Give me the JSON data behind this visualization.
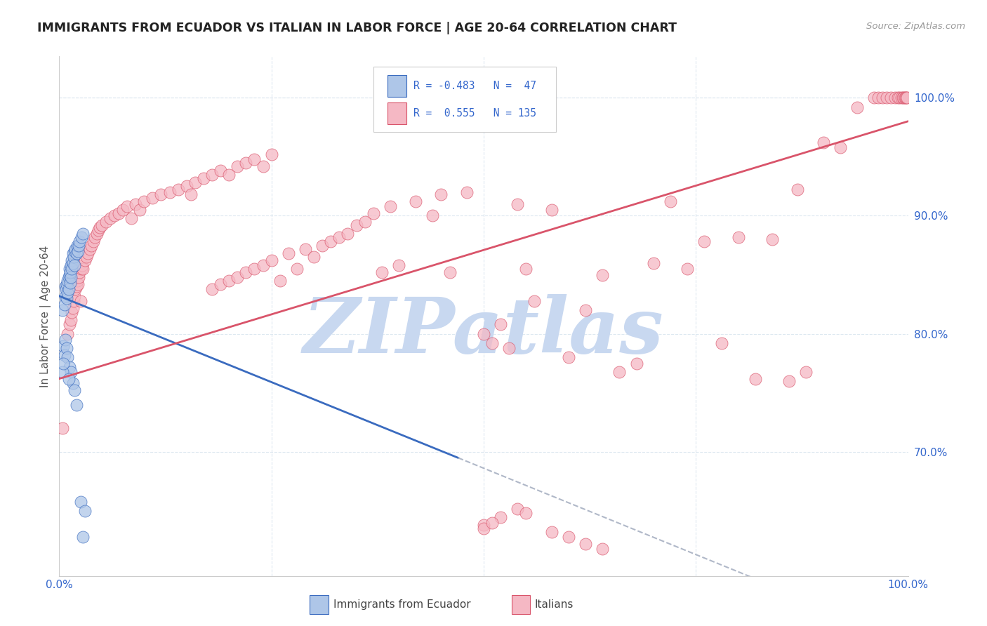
{
  "title": "IMMIGRANTS FROM ECUADOR VS ITALIAN IN LABOR FORCE | AGE 20-64 CORRELATION CHART",
  "source": "Source: ZipAtlas.com",
  "ylabel": "In Labor Force | Age 20-64",
  "xlim": [
    0.0,
    1.0
  ],
  "ylim": [
    0.595,
    1.035
  ],
  "yticks": [
    0.7,
    0.8,
    0.9,
    1.0
  ],
  "ytick_labels": [
    "70.0%",
    "80.0%",
    "90.0%",
    "100.0%"
  ],
  "watermark": "ZIPatlas",
  "blue_color": "#aec6e8",
  "pink_color": "#f5b8c4",
  "line_blue": "#3a6bbf",
  "line_pink": "#d9546a",
  "line_dashed_color": "#b0b8c8",
  "title_color": "#222222",
  "axis_label_color": "#555555",
  "tick_color": "#3366cc",
  "watermark_color": "#c8d8f0",
  "background_color": "#ffffff",
  "grid_color": "#dde8f0",
  "blue_scatter": [
    [
      0.004,
      0.82
    ],
    [
      0.006,
      0.825
    ],
    [
      0.007,
      0.832
    ],
    [
      0.007,
      0.84
    ],
    [
      0.008,
      0.838
    ],
    [
      0.009,
      0.842
    ],
    [
      0.009,
      0.83
    ],
    [
      0.01,
      0.845
    ],
    [
      0.01,
      0.835
    ],
    [
      0.011,
      0.838
    ],
    [
      0.011,
      0.848
    ],
    [
      0.012,
      0.85
    ],
    [
      0.012,
      0.855
    ],
    [
      0.013,
      0.843
    ],
    [
      0.013,
      0.852
    ],
    [
      0.014,
      0.848
    ],
    [
      0.014,
      0.858
    ],
    [
      0.015,
      0.862
    ],
    [
      0.015,
      0.855
    ],
    [
      0.016,
      0.86
    ],
    [
      0.016,
      0.868
    ],
    [
      0.017,
      0.865
    ],
    [
      0.018,
      0.87
    ],
    [
      0.018,
      0.858
    ],
    [
      0.019,
      0.872
    ],
    [
      0.02,
      0.868
    ],
    [
      0.021,
      0.875
    ],
    [
      0.022,
      0.87
    ],
    [
      0.023,
      0.875
    ],
    [
      0.024,
      0.878
    ],
    [
      0.026,
      0.882
    ],
    [
      0.028,
      0.885
    ],
    [
      0.005,
      0.79
    ],
    [
      0.006,
      0.782
    ],
    [
      0.007,
      0.795
    ],
    [
      0.009,
      0.788
    ],
    [
      0.01,
      0.78
    ],
    [
      0.012,
      0.772
    ],
    [
      0.014,
      0.768
    ],
    [
      0.016,
      0.758
    ],
    [
      0.018,
      0.752
    ],
    [
      0.004,
      0.768
    ],
    [
      0.005,
      0.775
    ],
    [
      0.011,
      0.762
    ],
    [
      0.02,
      0.74
    ],
    [
      0.025,
      0.658
    ],
    [
      0.03,
      0.65
    ],
    [
      0.028,
      0.628
    ]
  ],
  "pink_scatter": [
    [
      0.004,
      0.72
    ],
    [
      0.01,
      0.8
    ],
    [
      0.012,
      0.808
    ],
    [
      0.014,
      0.812
    ],
    [
      0.015,
      0.818
    ],
    [
      0.016,
      0.822
    ],
    [
      0.017,
      0.828
    ],
    [
      0.018,
      0.832
    ],
    [
      0.019,
      0.838
    ],
    [
      0.02,
      0.84
    ],
    [
      0.021,
      0.845
    ],
    [
      0.022,
      0.842
    ],
    [
      0.023,
      0.848
    ],
    [
      0.024,
      0.852
    ],
    [
      0.025,
      0.828
    ],
    [
      0.026,
      0.855
    ],
    [
      0.027,
      0.858
    ],
    [
      0.028,
      0.855
    ],
    [
      0.03,
      0.862
    ],
    [
      0.032,
      0.865
    ],
    [
      0.034,
      0.868
    ],
    [
      0.036,
      0.872
    ],
    [
      0.038,
      0.875
    ],
    [
      0.04,
      0.878
    ],
    [
      0.042,
      0.882
    ],
    [
      0.044,
      0.885
    ],
    [
      0.046,
      0.888
    ],
    [
      0.048,
      0.89
    ],
    [
      0.05,
      0.892
    ],
    [
      0.055,
      0.895
    ],
    [
      0.06,
      0.898
    ],
    [
      0.065,
      0.9
    ],
    [
      0.07,
      0.902
    ],
    [
      0.075,
      0.905
    ],
    [
      0.08,
      0.908
    ],
    [
      0.085,
      0.898
    ],
    [
      0.09,
      0.91
    ],
    [
      0.095,
      0.905
    ],
    [
      0.1,
      0.912
    ],
    [
      0.11,
      0.915
    ],
    [
      0.12,
      0.918
    ],
    [
      0.13,
      0.92
    ],
    [
      0.14,
      0.922
    ],
    [
      0.15,
      0.925
    ],
    [
      0.155,
      0.918
    ],
    [
      0.16,
      0.928
    ],
    [
      0.17,
      0.932
    ],
    [
      0.18,
      0.935
    ],
    [
      0.19,
      0.938
    ],
    [
      0.2,
      0.935
    ],
    [
      0.21,
      0.942
    ],
    [
      0.22,
      0.945
    ],
    [
      0.23,
      0.948
    ],
    [
      0.24,
      0.942
    ],
    [
      0.25,
      0.952
    ],
    [
      0.18,
      0.838
    ],
    [
      0.19,
      0.842
    ],
    [
      0.2,
      0.845
    ],
    [
      0.21,
      0.848
    ],
    [
      0.22,
      0.852
    ],
    [
      0.23,
      0.855
    ],
    [
      0.24,
      0.858
    ],
    [
      0.25,
      0.862
    ],
    [
      0.26,
      0.845
    ],
    [
      0.27,
      0.868
    ],
    [
      0.28,
      0.855
    ],
    [
      0.29,
      0.872
    ],
    [
      0.3,
      0.865
    ],
    [
      0.31,
      0.875
    ],
    [
      0.32,
      0.878
    ],
    [
      0.33,
      0.882
    ],
    [
      0.34,
      0.885
    ],
    [
      0.35,
      0.892
    ],
    [
      0.36,
      0.895
    ],
    [
      0.37,
      0.902
    ],
    [
      0.38,
      0.852
    ],
    [
      0.39,
      0.908
    ],
    [
      0.4,
      0.858
    ],
    [
      0.42,
      0.912
    ],
    [
      0.44,
      0.9
    ],
    [
      0.45,
      0.918
    ],
    [
      0.46,
      0.852
    ],
    [
      0.48,
      0.92
    ],
    [
      0.5,
      0.8
    ],
    [
      0.51,
      0.792
    ],
    [
      0.52,
      0.808
    ],
    [
      0.53,
      0.788
    ],
    [
      0.54,
      0.91
    ],
    [
      0.55,
      0.855
    ],
    [
      0.56,
      0.828
    ],
    [
      0.58,
      0.905
    ],
    [
      0.6,
      0.78
    ],
    [
      0.62,
      0.82
    ],
    [
      0.64,
      0.85
    ],
    [
      0.66,
      0.768
    ],
    [
      0.68,
      0.775
    ],
    [
      0.7,
      0.86
    ],
    [
      0.72,
      0.912
    ],
    [
      0.74,
      0.855
    ],
    [
      0.76,
      0.878
    ],
    [
      0.78,
      0.792
    ],
    [
      0.8,
      0.882
    ],
    [
      0.82,
      0.762
    ],
    [
      0.84,
      0.88
    ],
    [
      0.86,
      0.76
    ],
    [
      0.87,
      0.922
    ],
    [
      0.88,
      0.768
    ],
    [
      0.9,
      0.962
    ],
    [
      0.92,
      0.958
    ],
    [
      0.94,
      0.992
    ],
    [
      0.96,
      1.0
    ],
    [
      0.965,
      1.0
    ],
    [
      0.97,
      1.0
    ],
    [
      0.975,
      1.0
    ],
    [
      0.98,
      1.0
    ],
    [
      0.985,
      1.0
    ],
    [
      0.988,
      1.0
    ],
    [
      0.99,
      1.0
    ],
    [
      0.992,
      1.0
    ],
    [
      0.994,
      1.0
    ],
    [
      0.995,
      1.0
    ],
    [
      0.996,
      1.0
    ],
    [
      0.997,
      1.0
    ],
    [
      0.998,
      1.0
    ],
    [
      0.999,
      1.0
    ],
    [
      0.5,
      0.638
    ],
    [
      0.52,
      0.645
    ],
    [
      0.54,
      0.652
    ],
    [
      0.55,
      0.648
    ],
    [
      0.58,
      0.632
    ],
    [
      0.6,
      0.628
    ],
    [
      0.62,
      0.622
    ],
    [
      0.64,
      0.618
    ],
    [
      0.5,
      0.635
    ],
    [
      0.51,
      0.64
    ]
  ],
  "blue_line_solid": [
    [
      0.0,
      0.832
    ],
    [
      0.47,
      0.695
    ]
  ],
  "blue_line_dashed": [
    [
      0.47,
      0.695
    ],
    [
      1.0,
      0.54
    ]
  ],
  "pink_line": [
    [
      0.0,
      0.762
    ],
    [
      1.0,
      0.98
    ]
  ]
}
